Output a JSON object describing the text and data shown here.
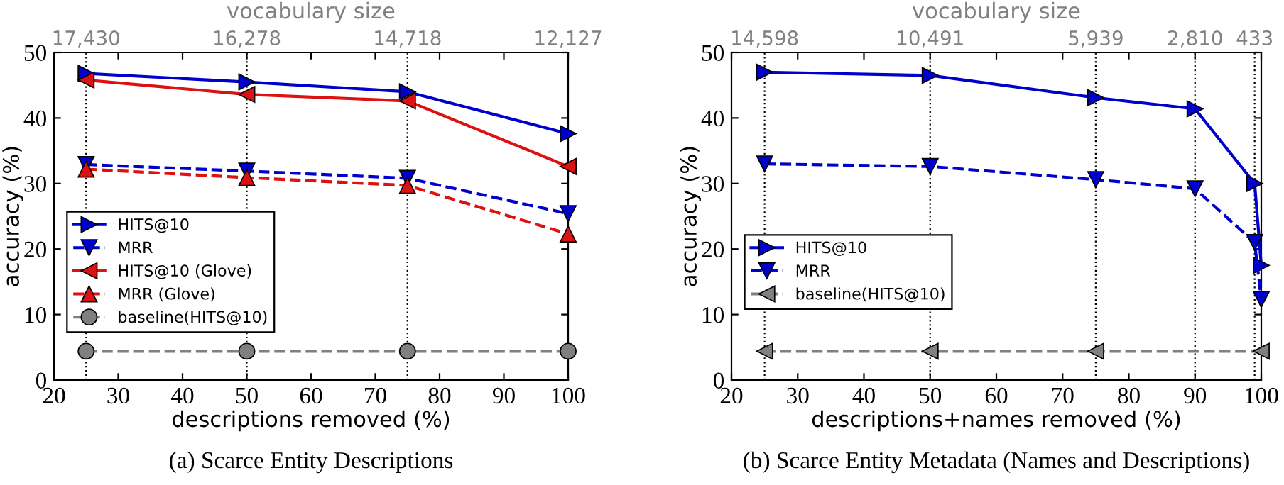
{
  "chart_data": [
    {
      "type": "line",
      "xlabel": "descriptions removed (%)",
      "ylabel": "accuracy (%)",
      "x2label": "vocabulary size",
      "x": [
        25,
        50,
        75,
        100
      ],
      "series": [
        {
          "name": "HITS@10",
          "color": "#0000cc",
          "marker": "triangle-right",
          "line_style": "solid",
          "values": [
            46.8,
            45.5,
            44.0,
            37.6
          ]
        },
        {
          "name": "MRR",
          "color": "#0000cc",
          "marker": "triangle-down",
          "line_style": "dashed",
          "values": [
            32.9,
            31.9,
            30.8,
            25.4
          ]
        },
        {
          "name": "HITS@10 (Glove)",
          "color": "#dd1111",
          "marker": "triangle-left",
          "line_style": "solid",
          "values": [
            45.8,
            43.6,
            42.6,
            32.6
          ]
        },
        {
          "name": "MRR (Glove)",
          "color": "#dd1111",
          "marker": "triangle-up",
          "line_style": "dashed",
          "values": [
            32.2,
            30.9,
            29.7,
            22.3
          ]
        },
        {
          "name": "baseline(HITS@10)",
          "color": "#808080",
          "marker": "circle",
          "line_style": "dashed",
          "values": [
            4.4,
            4.4,
            4.4,
            4.4
          ]
        }
      ],
      "xlim": [
        20,
        100
      ],
      "xticks": [
        20,
        30,
        40,
        50,
        60,
        70,
        80,
        90,
        100
      ],
      "ylim": [
        0,
        50
      ],
      "yticks": [
        0,
        10,
        20,
        30,
        40,
        50
      ],
      "ref_lines": [
        {
          "axis": "x",
          "value": 25,
          "line_style": "dotted"
        },
        {
          "axis": "x",
          "value": 50,
          "line_style": "dotted"
        },
        {
          "axis": "x",
          "value": 75,
          "line_style": "dotted"
        }
      ],
      "legend": "center left",
      "annotations": [
        "17,430",
        "16,278",
        "14,718",
        "12,127",
        "(a) Scarce Entity Descriptions"
      ]
    },
    {
      "type": "line",
      "xlabel": "descriptions+names removed (%)",
      "ylabel": "accuracy (%)",
      "x2label": "vocabulary size",
      "series": [
        {
          "name": "HITS@10",
          "color": "#0000cc",
          "marker": "triangle-right",
          "line_style": "solid",
          "x": [
            25,
            50,
            75,
            90,
            99,
            100
          ],
          "values": [
            47.0,
            46.5,
            43.1,
            41.4,
            30.0,
            17.5
          ]
        },
        {
          "name": "MRR",
          "color": "#0000cc",
          "marker": "triangle-down",
          "line_style": "dashed",
          "x": [
            25,
            50,
            75,
            90,
            99,
            100
          ],
          "values": [
            33.0,
            32.6,
            30.6,
            29.2,
            21.0,
            12.3
          ]
        },
        {
          "name": "baseline(HITS@10)",
          "color": "#808080",
          "marker": "triangle-left",
          "line_style": "dashed",
          "x": [
            25,
            50,
            75,
            100
          ],
          "values": [
            4.4,
            4.4,
            4.4,
            4.4
          ]
        }
      ],
      "xlim": [
        20,
        100
      ],
      "xticks": [
        20,
        30,
        40,
        50,
        60,
        70,
        80,
        90,
        100
      ],
      "ylim": [
        0,
        50
      ],
      "yticks": [
        0,
        10,
        20,
        30,
        40,
        50
      ],
      "ref_lines": [
        {
          "axis": "x",
          "value": 25,
          "line_style": "dotted"
        },
        {
          "axis": "x",
          "value": 50,
          "line_style": "dotted"
        },
        {
          "axis": "x",
          "value": 75,
          "line_style": "dotted"
        },
        {
          "axis": "x",
          "value": 90,
          "line_style": "dotted"
        },
        {
          "axis": "x",
          "value": 99,
          "line_style": "dotted"
        }
      ],
      "legend": "center left",
      "annotations": [
        "14,598",
        "10,491",
        "5,939",
        "2,810",
        "433",
        "(b) Scarce Entity Metadata (Names and Descriptions)"
      ]
    }
  ]
}
